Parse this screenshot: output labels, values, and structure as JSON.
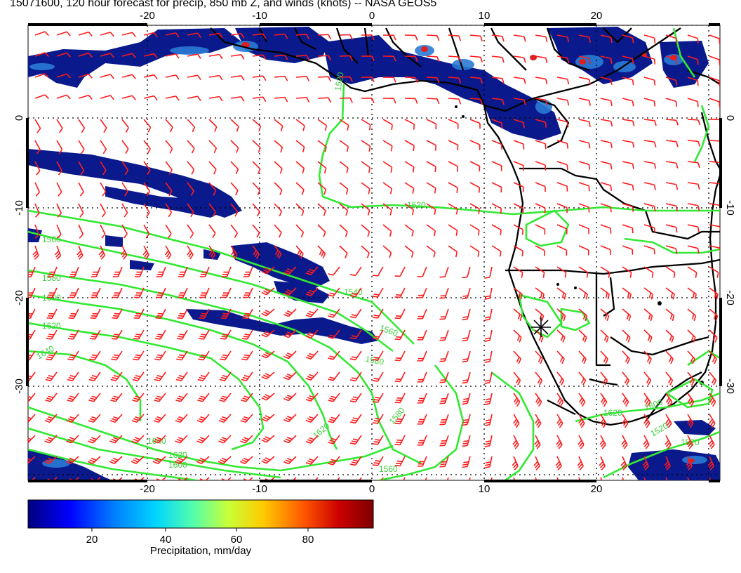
{
  "title": "15071600, 120 hour forecast for precip, 850 mb Z, and winds (knots) -- NASA GEOS5",
  "map": {
    "lon_ticks": [
      "-20",
      "-10",
      "0",
      "10",
      "20"
    ],
    "lat_ticks": [
      "0",
      "-10",
      "-20",
      "-30"
    ],
    "contour_labels": [
      "1520",
      "1520",
      "1560",
      "1580",
      "1600",
      "1620",
      "1640",
      "1540",
      "1560",
      "1580",
      "1640",
      "1620",
      "1600",
      "1560",
      "1520",
      "1520",
      "1600",
      "1620",
      "1620",
      "1580"
    ],
    "colors": {
      "contour": "#33e833",
      "wind_barb": "#ff1a1a",
      "coast": "#000000",
      "precip_core": "#0a1a8c"
    }
  },
  "colorbar": {
    "ticks": [
      "20",
      "40",
      "60",
      "80"
    ],
    "label": "Precipitation, mm/day",
    "gradient": [
      "#00007f",
      "#0000ff",
      "#007fff",
      "#00d5ff",
      "#55ffaa",
      "#c8ff37",
      "#ffcc00",
      "#ff5500",
      "#cc0000",
      "#7f0000"
    ]
  }
}
